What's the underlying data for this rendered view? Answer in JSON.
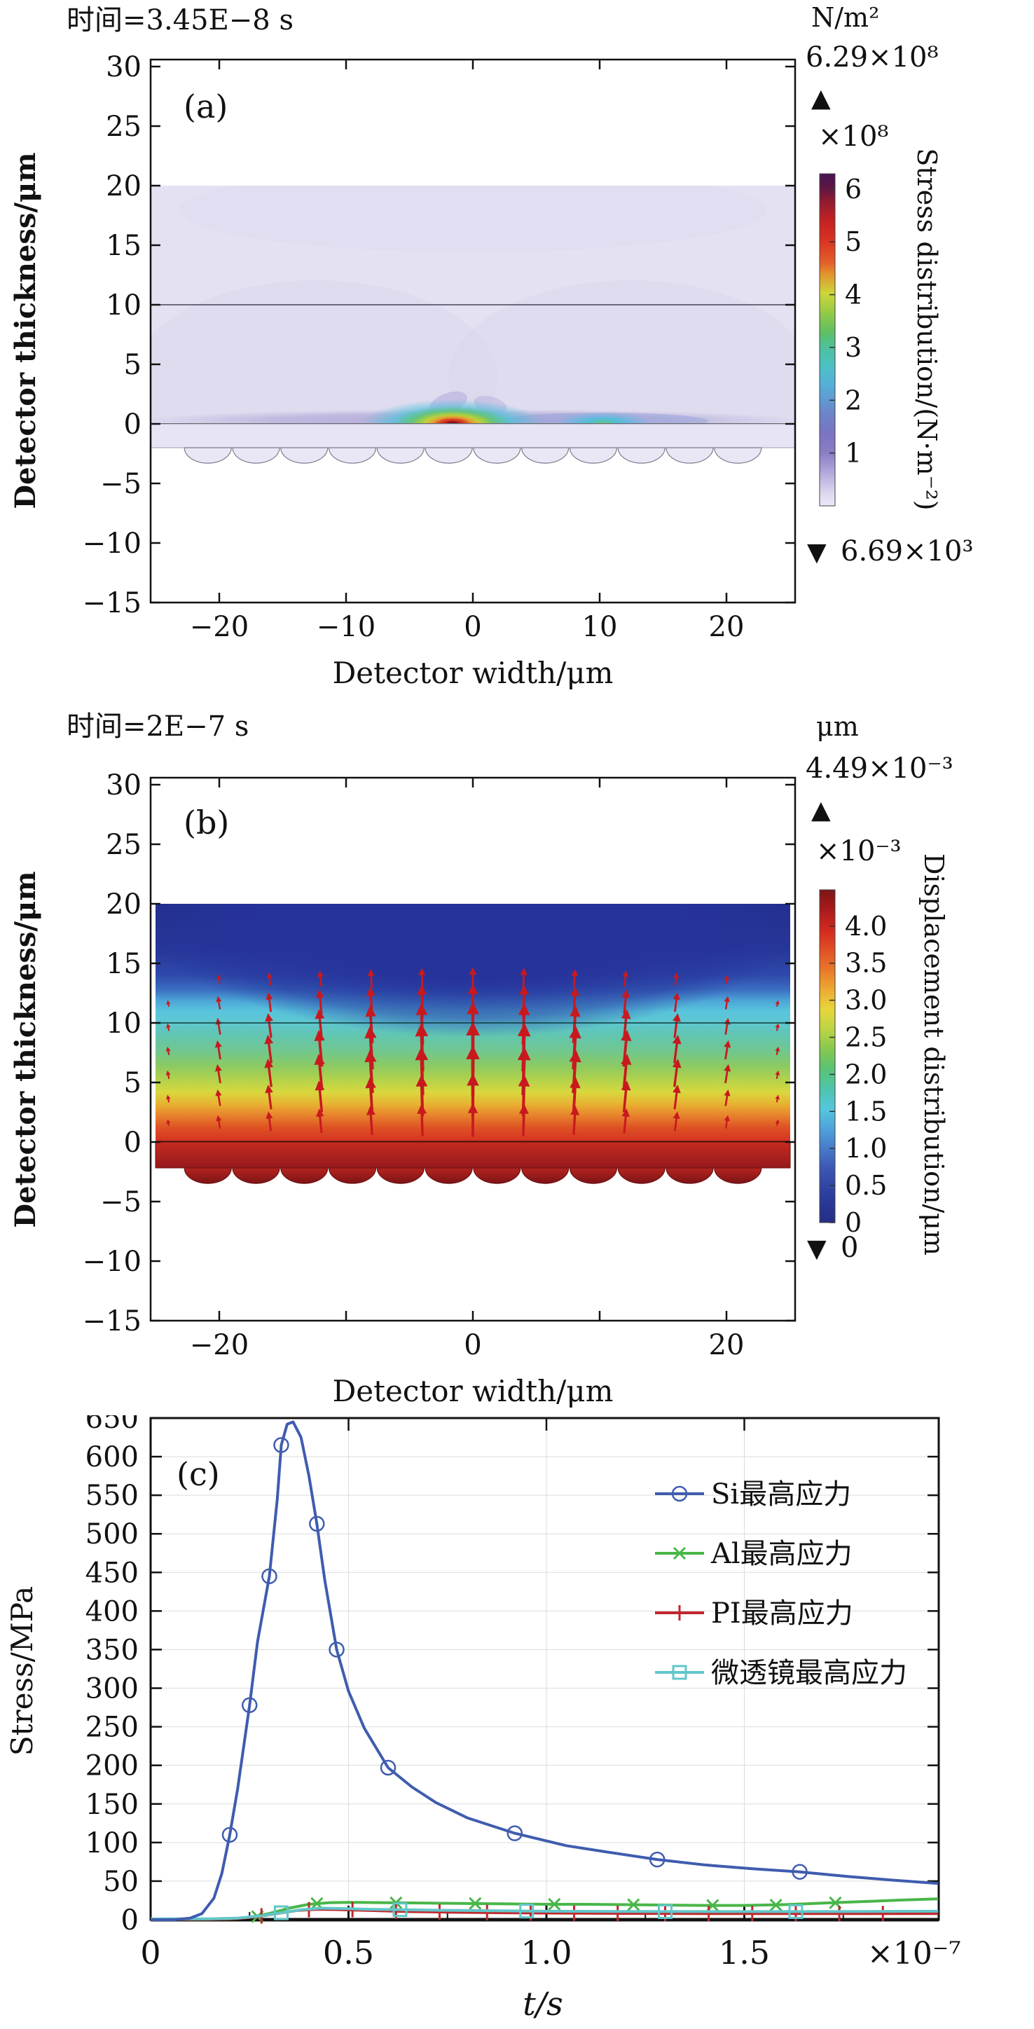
{
  "panels": {
    "a": {
      "panel_label": "(a)",
      "title": "时间=3.45E−8 s",
      "unit_label": "N/m²",
      "max_label": "6.29×10⁸",
      "max_marker": "▲",
      "scale_label": "×10⁸",
      "min_marker": "▼",
      "min_label": "6.69×10³",
      "colorbar_title": "Stress distribution/(N·m⁻²)",
      "colorbar_max": 6.29,
      "colorbar_ticks": [
        [
          6,
          "6"
        ],
        [
          5,
          "5"
        ],
        [
          4,
          "4"
        ],
        [
          3,
          "3"
        ],
        [
          2,
          "2"
        ],
        [
          1,
          "1"
        ]
      ],
      "xlabel": "Detector width/μm",
      "ylabel": "Detector thickness/μm",
      "xticks": [
        [
          -20,
          "−20"
        ],
        [
          -10,
          "−10"
        ],
        [
          0,
          "0"
        ],
        [
          10,
          "10"
        ],
        [
          20,
          "20"
        ]
      ],
      "xtick_marks": [
        -20,
        -10,
        0,
        10,
        20
      ],
      "yticks": [
        [
          30,
          "30"
        ],
        [
          25,
          "25"
        ],
        [
          20,
          "20"
        ],
        [
          15,
          "15"
        ],
        [
          10,
          "10"
        ],
        [
          5,
          "5"
        ],
        [
          0,
          "0"
        ],
        [
          -5,
          "−5"
        ],
        [
          -10,
          "−10"
        ],
        [
          -15,
          "−15"
        ]
      ]
    },
    "b": {
      "panel_label": "(b)",
      "title": "时间=2E−7 s",
      "unit_label": "μm",
      "max_label": "4.49×10⁻³",
      "max_marker": "▲",
      "scale_label": "×10⁻³",
      "min_marker": "▼",
      "min_label": "0",
      "colorbar_title": "Displacement distribution/μm",
      "colorbar_max": 4.49,
      "colorbar_ticks": [
        [
          4.0,
          "4.0"
        ],
        [
          3.5,
          "3.5"
        ],
        [
          3.0,
          "3.0"
        ],
        [
          2.5,
          "2.5"
        ],
        [
          2.0,
          "2.0"
        ],
        [
          1.5,
          "1.5"
        ],
        [
          1.0,
          "1.0"
        ],
        [
          0.5,
          "0.5"
        ],
        [
          0,
          "0"
        ]
      ],
      "xlabel": "Detector width/μm",
      "ylabel": "Detector thickness/μm",
      "xticks": [
        [
          -20,
          "−20"
        ],
        [
          0,
          "0"
        ],
        [
          20,
          "20"
        ]
      ],
      "xtick_marks": [
        -20,
        -10,
        0,
        10,
        20
      ],
      "yticks": [
        [
          30,
          "30"
        ],
        [
          25,
          "25"
        ],
        [
          20,
          "20"
        ],
        [
          15,
          "15"
        ],
        [
          10,
          "10"
        ],
        [
          5,
          "5"
        ],
        [
          0,
          "0"
        ],
        [
          -5,
          "−5"
        ],
        [
          -10,
          "−10"
        ],
        [
          -15,
          "−15"
        ]
      ]
    },
    "c": {
      "panel_label": "(c)"
    }
  },
  "chart_data": {
    "type": "line",
    "title": "",
    "xlabel": "t/s",
    "x_multiplier": "×10⁻⁷",
    "ylabel": "Stress/MPa",
    "xlim": [
      0,
      1.99
    ],
    "ylim": [
      0,
      650
    ],
    "grid": true,
    "legend_position": "top-right",
    "xticks": [
      [
        0,
        "0"
      ],
      [
        0.5,
        "0.5"
      ],
      [
        1.0,
        "1.0"
      ],
      [
        1.5,
        "1.5"
      ]
    ],
    "yticks": [
      [
        0,
        "0"
      ],
      [
        50,
        "50"
      ],
      [
        100,
        "100"
      ],
      [
        150,
        "150"
      ],
      [
        200,
        "200"
      ],
      [
        250,
        "250"
      ],
      [
        300,
        "300"
      ],
      [
        350,
        "350"
      ],
      [
        400,
        "400"
      ],
      [
        450,
        "450"
      ],
      [
        500,
        "500"
      ],
      [
        550,
        "550"
      ],
      [
        600,
        "600"
      ],
      [
        650,
        "650"
      ]
    ],
    "series": [
      {
        "name": "Si最高应力",
        "color": "#3f5cae",
        "marker": "circle",
        "points": [
          [
            0,
            0
          ],
          [
            0.06,
            0
          ],
          [
            0.1,
            2
          ],
          [
            0.13,
            8
          ],
          [
            0.16,
            28
          ],
          [
            0.18,
            60
          ],
          [
            0.2,
            110
          ],
          [
            0.22,
            170
          ],
          [
            0.25,
            278
          ],
          [
            0.27,
            360
          ],
          [
            0.3,
            445
          ],
          [
            0.32,
            545
          ],
          [
            0.33,
            615
          ],
          [
            0.345,
            642
          ],
          [
            0.36,
            645
          ],
          [
            0.38,
            625
          ],
          [
            0.4,
            575
          ],
          [
            0.42,
            513
          ],
          [
            0.44,
            440
          ],
          [
            0.47,
            350
          ],
          [
            0.5,
            296
          ],
          [
            0.54,
            248
          ],
          [
            0.6,
            197
          ],
          [
            0.66,
            172
          ],
          [
            0.72,
            152
          ],
          [
            0.8,
            132
          ],
          [
            0.92,
            112
          ],
          [
            1.05,
            96
          ],
          [
            1.15,
            88
          ],
          [
            1.28,
            78
          ],
          [
            1.4,
            71
          ],
          [
            1.52,
            66
          ],
          [
            1.64,
            62
          ],
          [
            1.76,
            56
          ],
          [
            1.88,
            51
          ],
          [
            1.99,
            47
          ]
        ],
        "markers": [
          [
            0.2,
            110
          ],
          [
            0.25,
            278
          ],
          [
            0.3,
            445
          ],
          [
            0.33,
            615
          ],
          [
            0.42,
            513
          ],
          [
            0.47,
            350
          ],
          [
            0.6,
            197
          ],
          [
            0.92,
            112
          ],
          [
            1.28,
            78
          ],
          [
            1.64,
            62
          ]
        ]
      },
      {
        "name": "Al最高应力",
        "color": "#49b649",
        "marker": "x",
        "points": [
          [
            0,
            0.5
          ],
          [
            0.12,
            0.5
          ],
          [
            0.2,
            1
          ],
          [
            0.25,
            3
          ],
          [
            0.3,
            8
          ],
          [
            0.35,
            15
          ],
          [
            0.4,
            20
          ],
          [
            0.45,
            22
          ],
          [
            0.5,
            22.5
          ],
          [
            0.6,
            22
          ],
          [
            0.7,
            21.5
          ],
          [
            0.8,
            21
          ],
          [
            0.9,
            20.5
          ],
          [
            1.0,
            20
          ],
          [
            1.1,
            20
          ],
          [
            1.2,
            19.5
          ],
          [
            1.3,
            19
          ],
          [
            1.4,
            18.5
          ],
          [
            1.5,
            18.5
          ],
          [
            1.6,
            19.5
          ],
          [
            1.7,
            21.5
          ],
          [
            1.8,
            23.5
          ],
          [
            1.9,
            25.5
          ],
          [
            1.99,
            27
          ]
        ],
        "markers": [
          [
            0.27,
            4
          ],
          [
            0.42,
            21
          ],
          [
            0.62,
            22
          ],
          [
            0.82,
            21
          ],
          [
            1.02,
            20
          ],
          [
            1.22,
            19.5
          ],
          [
            1.42,
            18.5
          ],
          [
            1.58,
            19
          ],
          [
            1.73,
            22
          ]
        ]
      },
      {
        "name": "PI最高应力",
        "color": "#c0272d",
        "marker": "plus",
        "points": [
          [
            0,
            0.5
          ],
          [
            0.15,
            0.7
          ],
          [
            0.22,
            1.5
          ],
          [
            0.27,
            4
          ],
          [
            0.32,
            8
          ],
          [
            0.37,
            12
          ],
          [
            0.42,
            13.5
          ],
          [
            0.47,
            13.2
          ],
          [
            0.55,
            12
          ],
          [
            0.65,
            10.5
          ],
          [
            0.75,
            9.8
          ],
          [
            0.9,
            9
          ],
          [
            1.05,
            8.5
          ],
          [
            1.2,
            8.2
          ],
          [
            1.4,
            8
          ],
          [
            1.6,
            8
          ],
          [
            1.8,
            8
          ],
          [
            1.99,
            8
          ]
        ],
        "markers": [
          [
            0.28,
            5
          ],
          [
            0.4,
            13
          ],
          [
            0.51,
            13
          ],
          [
            0.62,
            11
          ],
          [
            0.73,
            10
          ],
          [
            0.85,
            9.2
          ],
          [
            0.96,
            8.8
          ],
          [
            1.07,
            8.5
          ],
          [
            1.18,
            8.2
          ],
          [
            1.3,
            8
          ],
          [
            1.41,
            8
          ],
          [
            1.52,
            8
          ],
          [
            1.63,
            8
          ],
          [
            1.74,
            8
          ],
          [
            1.85,
            8
          ]
        ]
      },
      {
        "name": "微透镜最高应力",
        "color": "#62c6c9",
        "marker": "square",
        "points": [
          [
            0,
            1
          ],
          [
            0.15,
            1.2
          ],
          [
            0.22,
            2
          ],
          [
            0.28,
            5
          ],
          [
            0.33,
            9
          ],
          [
            0.38,
            13
          ],
          [
            0.43,
            15
          ],
          [
            0.48,
            14.5
          ],
          [
            0.55,
            13.5
          ],
          [
            0.65,
            12.8
          ],
          [
            0.75,
            12.2
          ],
          [
            0.9,
            11.4
          ],
          [
            1.0,
            11
          ],
          [
            1.2,
            10.6
          ],
          [
            1.4,
            10.5
          ],
          [
            1.6,
            10.5
          ],
          [
            1.8,
            10.6
          ],
          [
            1.99,
            11
          ]
        ],
        "markers": [
          [
            0.33,
            9
          ],
          [
            0.63,
            13
          ],
          [
            0.95,
            11.2
          ],
          [
            1.3,
            10.5
          ],
          [
            1.63,
            10.5
          ]
        ]
      }
    ]
  }
}
